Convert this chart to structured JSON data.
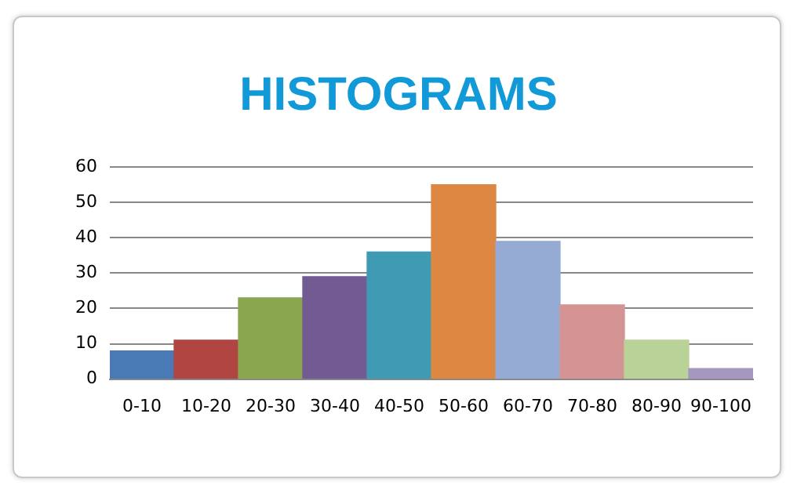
{
  "chart_data": {
    "type": "bar",
    "title": "HISTOGRAMS",
    "categories": [
      "0-10",
      "10-20",
      "20-30",
      "30-40",
      "40-50",
      "50-60",
      "60-70",
      "70-80",
      "80-90",
      "90-100"
    ],
    "values": [
      8,
      11,
      23,
      29,
      36,
      55,
      39,
      21,
      11,
      3
    ],
    "colors": [
      "#4a7ab5",
      "#b04542",
      "#8aa64e",
      "#725a92",
      "#3f9bb3",
      "#de8742",
      "#95abd4",
      "#d49493",
      "#b9d297",
      "#a597c0"
    ],
    "ylim": [
      0,
      60
    ],
    "yticks": [
      0,
      10,
      20,
      30,
      40,
      50,
      60
    ],
    "grid": "y",
    "legend": false
  }
}
